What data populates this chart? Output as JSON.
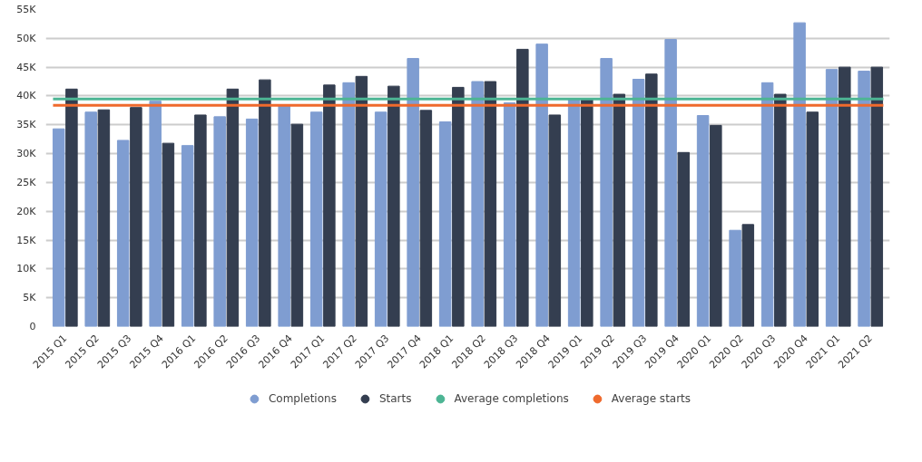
{
  "chart_data": {
    "type": "bar",
    "categories": [
      "2015 Q1",
      "2015 Q2",
      "2015 Q3",
      "2015 Q4",
      "2016 Q1",
      "2016 Q2",
      "2016 Q3",
      "2016 Q4",
      "2017 Q1",
      "2017 Q2",
      "2017 Q3",
      "2017 Q4",
      "2018 Q1",
      "2018 Q2",
      "2018 Q3",
      "2018 Q4",
      "2019 Q1",
      "2019 Q2",
      "2019 Q3",
      "2019 Q4",
      "2020 Q1",
      "2020 Q2",
      "2020 Q3",
      "2020 Q4",
      "2021 Q1",
      "2021 Q2"
    ],
    "series": [
      {
        "name": "Completions",
        "color": "#7f9dd1",
        "values": [
          34300,
          37200,
          32300,
          39100,
          31400,
          36400,
          36000,
          38400,
          37200,
          42300,
          37200,
          46500,
          35500,
          42500,
          38800,
          49000,
          39400,
          46500,
          42900,
          49800,
          36600,
          16700,
          42300,
          52700,
          44600,
          44300
        ]
      },
      {
        "name": "Starts",
        "color": "#343e50",
        "values": [
          41200,
          37600,
          38000,
          31800,
          36700,
          41200,
          42800,
          35100,
          41900,
          43400,
          41700,
          37500,
          41500,
          42500,
          48100,
          36700,
          39400,
          40300,
          43800,
          30200,
          34900,
          17700,
          40300,
          37200,
          45000,
          45000
        ]
      }
    ],
    "ref_lines": [
      {
        "axis": "y",
        "value": 39500,
        "label": "Average completions",
        "color": "#4db594"
      },
      {
        "axis": "y",
        "value": 38400,
        "label": "Average starts",
        "color": "#ef6a2d"
      }
    ],
    "ylim": [
      0,
      55000
    ],
    "yticks": [
      {
        "value": 0,
        "label": "0"
      },
      {
        "value": 5000,
        "label": "5K"
      },
      {
        "value": 10000,
        "label": "10K"
      },
      {
        "value": 15000,
        "label": "15K"
      },
      {
        "value": 20000,
        "label": "20K"
      },
      {
        "value": 25000,
        "label": "25K"
      },
      {
        "value": 30000,
        "label": "30K"
      },
      {
        "value": 35000,
        "label": "35K"
      },
      {
        "value": 40000,
        "label": "40K"
      },
      {
        "value": 45000,
        "label": "45K"
      },
      {
        "value": 50000,
        "label": "50K"
      },
      {
        "value": 55000,
        "label": "55K"
      }
    ],
    "grid": "y",
    "legend": "bottom"
  }
}
